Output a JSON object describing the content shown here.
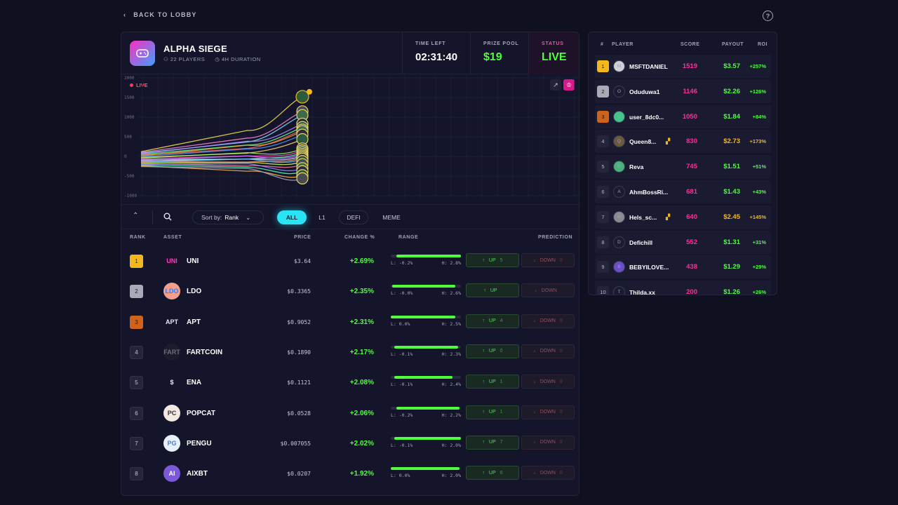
{
  "nav": {
    "back_label": "BACK TO LOBBY",
    "help_icon": "question-circle-icon"
  },
  "game": {
    "title": "ALPHA SIEGE",
    "players": "22 PLAYERS",
    "duration": "4H DURATION",
    "time_left_label": "TIME LEFT",
    "time_left": "02:31:40",
    "prize_pool_label": "PRIZE POOL",
    "prize_pool": "$19",
    "status_label": "STATUS",
    "status": "LIVE"
  },
  "chart": {
    "live_label": "LIVE",
    "y_ticks": [
      "2000",
      "1500",
      "1000",
      "500",
      "0",
      "-500",
      "-1000"
    ]
  },
  "chart_data": {
    "type": "line",
    "ylim": [
      -1000,
      2000
    ],
    "series_count": 22,
    "y_ticks": [
      2000,
      1500,
      1000,
      500,
      0,
      -500,
      -1000
    ]
  },
  "filters": {
    "sort_label": "Sort by:",
    "sort_value": "Rank",
    "chips": [
      "ALL",
      "L1",
      "DEFI",
      "MEME"
    ],
    "active_chip": "ALL"
  },
  "table": {
    "headers": {
      "rank": "RANK",
      "asset": "ASSET",
      "price": "PRICE",
      "change": "CHANGE %",
      "range": "RANGE",
      "prediction": "PREDICTION"
    },
    "rows": [
      {
        "rank": "1",
        "name": "UNI",
        "price": "$3.64",
        "change": "+2.69%",
        "low": "L: -0.2%",
        "high": "H: 2.8%",
        "fill": [
          0.08,
          1.0
        ],
        "up": "UP",
        "up_count": "5",
        "down": "DOWN",
        "down_count": "0",
        "icon_bg": "#1a1228",
        "icon_color": "#ff3fbf",
        "icon": "UNI"
      },
      {
        "rank": "2",
        "name": "LDO",
        "price": "$0.3365",
        "change": "+2.35%",
        "low": "L: -0.0%",
        "high": "H: 2.6%",
        "fill": [
          0.02,
          0.92
        ],
        "up": "UP",
        "up_count": "",
        "down": "DOWN",
        "down_count": "",
        "icon_bg": "#f2a08c",
        "icon_color": "#2b7fff",
        "icon": "LDO"
      },
      {
        "rank": "3",
        "name": "APT",
        "price": "$0.9052",
        "change": "+2.31%",
        "low": "L: 0.0%",
        "high": "H: 2.5%",
        "fill": [
          0.0,
          0.92
        ],
        "up": "UP",
        "up_count": "4",
        "down": "DOWN",
        "down_count": "0",
        "icon_bg": "#14152a",
        "icon_color": "#e8e8f0",
        "icon": "APT"
      },
      {
        "rank": "4",
        "name": "FARTCOIN",
        "price": "$0.1890",
        "change": "+2.17%",
        "low": "L: -0.1%",
        "high": "H: 2.3%",
        "fill": [
          0.05,
          0.96
        ],
        "up": "UP",
        "up_count": "0",
        "down": "DOWN",
        "down_count": "0",
        "icon_bg": "#1c1d2c",
        "icon_color": "#6b6c7e",
        "icon": "FART"
      },
      {
        "rank": "5",
        "name": "ENA",
        "price": "$0.1121",
        "change": "+2.08%",
        "low": "L: -0.1%",
        "high": "H: 2.4%",
        "fill": [
          0.05,
          0.88
        ],
        "up": "UP",
        "up_count": "1",
        "down": "DOWN",
        "down_count": "0",
        "icon_bg": "#14152a",
        "icon_color": "#e8e8f0",
        "icon": "$"
      },
      {
        "rank": "6",
        "name": "POPCAT",
        "price": "$0.0528",
        "change": "+2.06%",
        "low": "L: -0.2%",
        "high": "H: 2.2%",
        "fill": [
          0.08,
          0.98
        ],
        "up": "UP",
        "up_count": "1",
        "down": "DOWN",
        "down_count": "0",
        "icon_bg": "#f3e9e2",
        "icon_color": "#333",
        "icon": "PC"
      },
      {
        "rank": "7",
        "name": "PENGU",
        "price": "$0.007055",
        "change": "+2.02%",
        "low": "L: -0.1%",
        "high": "H: 2.0%",
        "fill": [
          0.05,
          1.0
        ],
        "up": "UP",
        "up_count": "7",
        "down": "DOWN",
        "down_count": "0",
        "icon_bg": "#e7f1fb",
        "icon_color": "#4a7bd8",
        "icon": "PG"
      },
      {
        "rank": "8",
        "name": "AIXBT",
        "price": "$0.0207",
        "change": "+1.92%",
        "low": "L: 0.0%",
        "high": "H: 2.0%",
        "fill": [
          0.0,
          0.98
        ],
        "up": "UP",
        "up_count": "6",
        "down": "DOWN",
        "down_count": "0",
        "icon_bg": "#7b59d8",
        "icon_color": "#fff",
        "icon": "AI"
      }
    ]
  },
  "leaderboard": {
    "headers": {
      "rank": "#",
      "player": "PLAYER",
      "score": "SCORE",
      "payout": "PAYOUT",
      "roi": "ROI"
    },
    "rows": [
      {
        "rank": "1",
        "avatar": "M",
        "name": "MSFTDANIEL",
        "score": "1519",
        "payout": "$3.57",
        "roi": "+257%",
        "boost": ""
      },
      {
        "rank": "2",
        "avatar": "O",
        "name": "Oduduwa1",
        "score": "1146",
        "payout": "$2.26",
        "roi": "+126%",
        "boost": ""
      },
      {
        "rank": "3",
        "avatar": "U",
        "name": "user_8dc0...",
        "score": "1050",
        "payout": "$1.84",
        "roi": "+84%",
        "boost": ""
      },
      {
        "rank": "4",
        "avatar": "Q",
        "name": "Queen8...",
        "score": "830",
        "payout": "$2.73",
        "roi": "+173%",
        "boost": "▞"
      },
      {
        "rank": "5",
        "avatar": "R",
        "name": "Reva",
        "score": "745",
        "payout": "$1.51",
        "roi": "+51%",
        "boost": ""
      },
      {
        "rank": "6",
        "avatar": "A",
        "name": "AhmBossRi...",
        "score": "681",
        "payout": "$1.43",
        "roi": "+43%",
        "boost": ""
      },
      {
        "rank": "7",
        "avatar": "H",
        "name": "Hels_sc...",
        "score": "640",
        "payout": "$2.45",
        "roi": "+145%",
        "boost": "▞"
      },
      {
        "rank": "8",
        "avatar": "D",
        "name": "Defichill",
        "score": "552",
        "payout": "$1.31",
        "roi": "+31%",
        "boost": ""
      },
      {
        "rank": "9",
        "avatar": "B",
        "name": "BEBYILOVE...",
        "score": "438",
        "payout": "$1.29",
        "roi": "+29%",
        "boost": ""
      },
      {
        "rank": "10",
        "avatar": "T",
        "name": "Thilda.xx",
        "score": "200",
        "payout": "$1.26",
        "roi": "+26%",
        "boost": ""
      }
    ]
  }
}
